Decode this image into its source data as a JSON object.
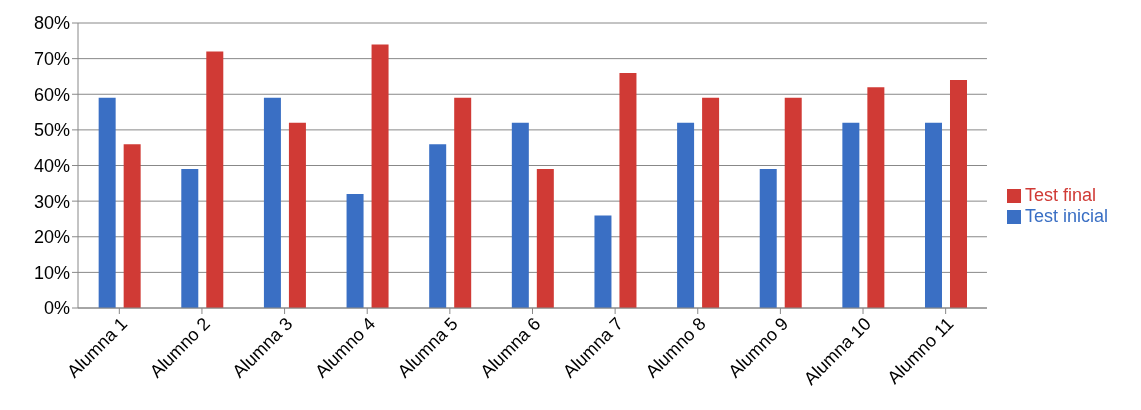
{
  "chart_data": {
    "type": "bar",
    "categories": [
      "Alumna 1",
      "Alumno 2",
      "Alumna 3",
      "Alumno 4",
      "Alumna 5",
      "Alumna 6",
      "Alumna 7",
      "Alumno 8",
      "Alumno 9",
      "Alumna 10",
      "Alumno 11"
    ],
    "series": [
      {
        "name": "Test inicial",
        "color": "#3a6fc4",
        "values": [
          59,
          39,
          59,
          32,
          46,
          52,
          26,
          52,
          39,
          52,
          52
        ]
      },
      {
        "name": "Test final",
        "color": "#d03a35",
        "values": [
          46,
          72,
          52,
          74,
          59,
          39,
          66,
          59,
          59,
          62,
          64
        ]
      }
    ],
    "ylim": [
      0,
      80
    ],
    "yticks": [
      {
        "value": 0,
        "label": "0%"
      },
      {
        "value": 10,
        "label": "10%"
      },
      {
        "value": 20,
        "label": "20%"
      },
      {
        "value": 30,
        "label": "30%"
      },
      {
        "value": 40,
        "label": "40%"
      },
      {
        "value": 50,
        "label": "50%"
      },
      {
        "value": 60,
        "label": "60%"
      },
      {
        "value": 70,
        "label": "70%"
      },
      {
        "value": 80,
        "label": "80%"
      }
    ],
    "grid": "y",
    "legend": "right"
  }
}
